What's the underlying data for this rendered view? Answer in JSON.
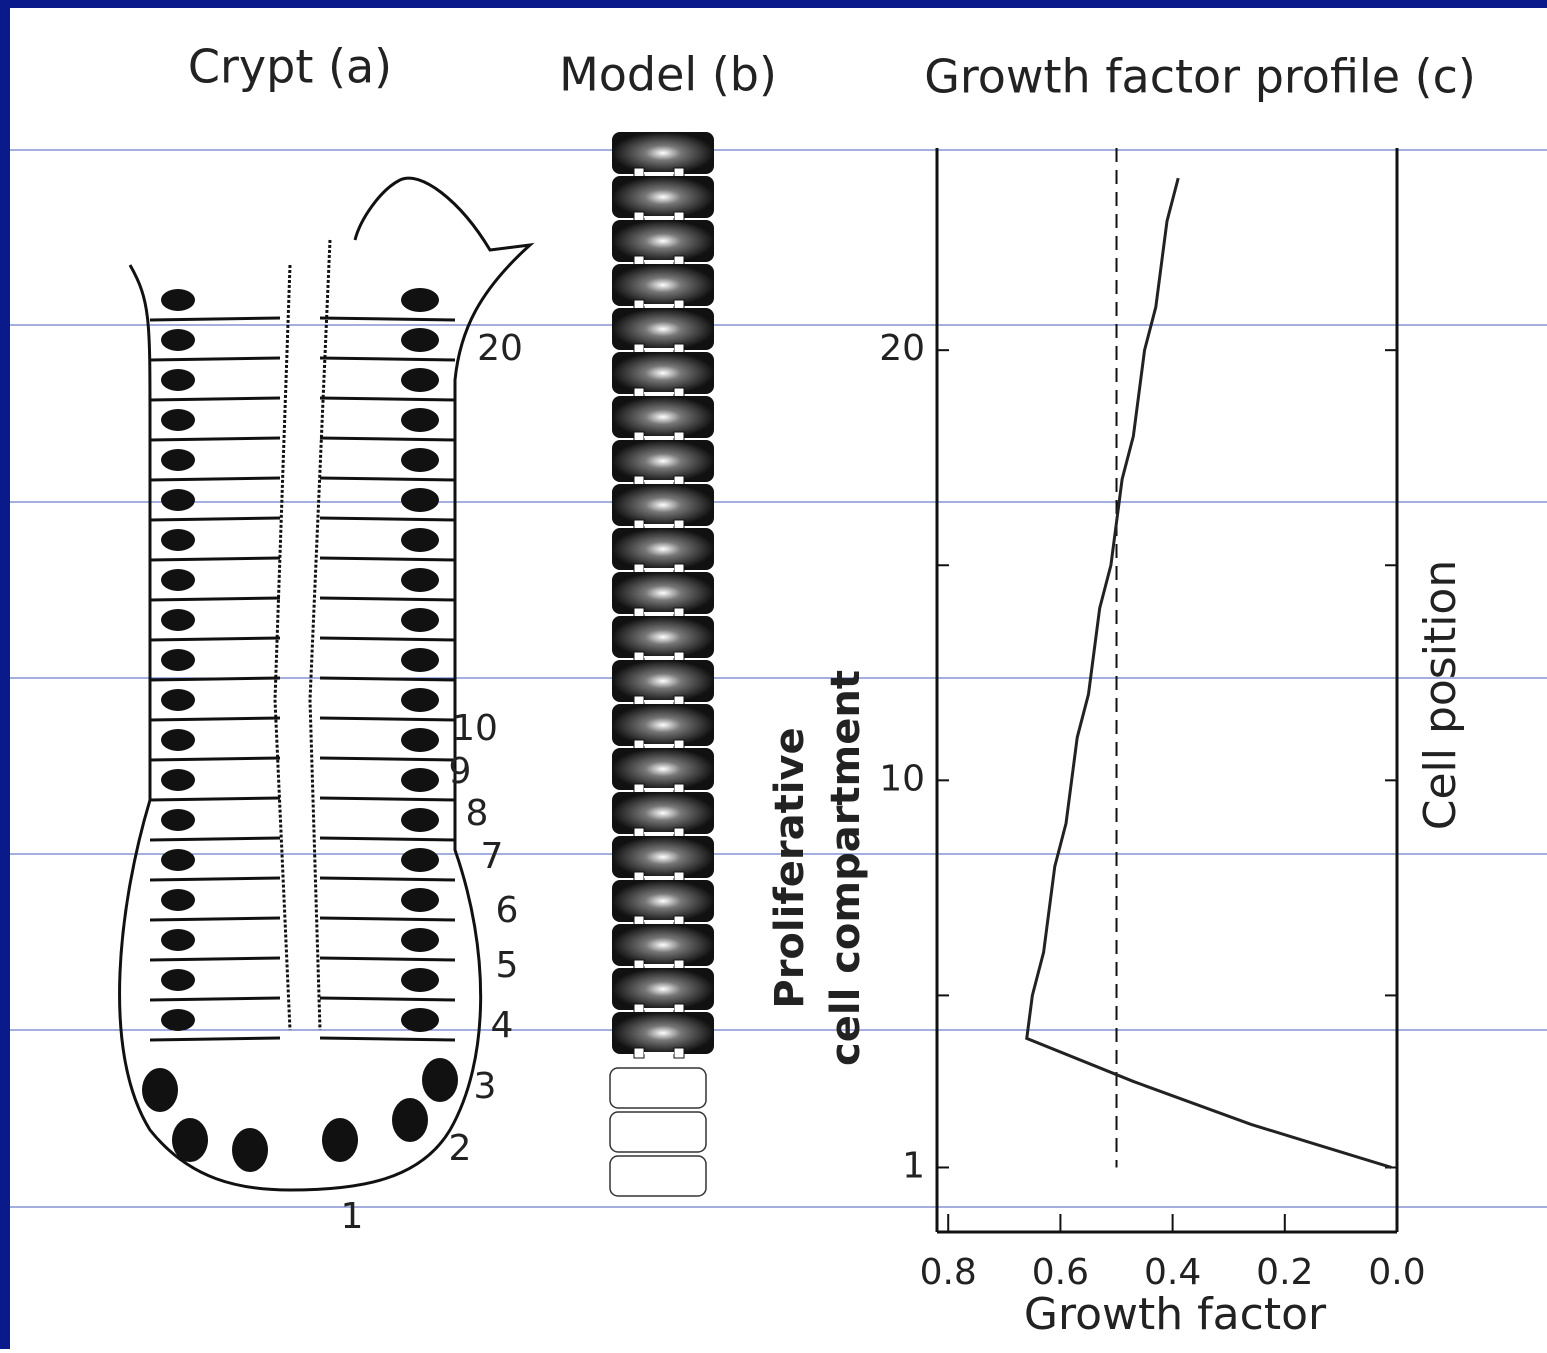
{
  "crypt": {
    "title": "Crypt (a)",
    "position_labels": [
      "1",
      "2",
      "3",
      "4",
      "5",
      "6",
      "7",
      "8",
      "9",
      "10",
      "20"
    ]
  },
  "model": {
    "title": "Model (b)"
  },
  "chart_data": {
    "type": "line",
    "title": "Growth factor profile (c)",
    "x_label": "Growth factor",
    "y_label": "Cell position",
    "annotation": [
      "Proliferative",
      "cell compartment"
    ],
    "y": [
      1,
      2,
      3,
      4,
      5,
      6,
      7,
      8,
      9,
      10,
      11,
      12,
      13,
      14,
      15,
      16,
      17,
      18,
      19,
      20,
      21,
      22,
      23,
      24
    ],
    "x": [
      0.01,
      0.26,
      0.47,
      0.66,
      0.65,
      0.63,
      0.62,
      0.61,
      0.59,
      0.58,
      0.57,
      0.55,
      0.54,
      0.53,
      0.51,
      0.5,
      0.49,
      0.47,
      0.46,
      0.45,
      0.43,
      0.42,
      0.41,
      0.39
    ],
    "color": "#222222",
    "xlim": [
      0.82,
      0
    ],
    "ylim": [
      -0.5,
      24.7
    ],
    "xticks": [
      0.8,
      0.6,
      0.4,
      0.2,
      {
        "value": 0,
        "label": "0.0"
      }
    ],
    "yticks": [
      1,
      10,
      20
    ],
    "minor_yticks": [
      5,
      15
    ],
    "reference_line": 0.5
  }
}
